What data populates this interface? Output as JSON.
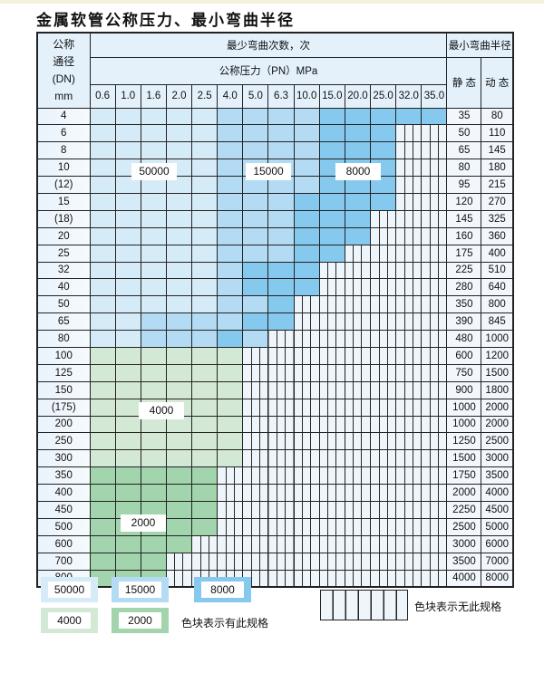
{
  "title": "金属软管公称压力、最小弯曲半径",
  "header": {
    "dn_label": [
      "公称",
      "通径",
      "(DN)",
      "mm"
    ],
    "cycles_label": "最少弯曲次数，次",
    "pressure_label": "公称压力（PN）MPa",
    "radius_label": "最小弯曲半径",
    "static_label": "静 态",
    "dynamic_label": "动 态",
    "pressures": [
      "0.6",
      "1.0",
      "1.6",
      "2.0",
      "2.5",
      "4.0",
      "5.0",
      "6.3",
      "10.0",
      "15.0",
      "20.0",
      "25.0",
      "32.0",
      "35.0"
    ]
  },
  "colors": {
    "L": "#d6ebf8",
    "M": "#b3dbf4",
    "D": "#86c9ee",
    "G1": "#d4e9d5",
    "G2": "#a2d4ae",
    "X": "#eef5fb"
  },
  "categories": {
    "L": "50000",
    "M": "15000",
    "D": "8000",
    "G1": "4000",
    "G2": "2000",
    "X": "none"
  },
  "rows": [
    {
      "dn": "4",
      "cells": "L L L L L M M M M D D D D D",
      "static": "35",
      "dynamic": "80"
    },
    {
      "dn": "6",
      "cells": "L L L L L M M M M D D D X X",
      "static": "50",
      "dynamic": "110"
    },
    {
      "dn": "8",
      "cells": "L L L L L M M M M D D D X X",
      "static": "65",
      "dynamic": "145"
    },
    {
      "dn": "10",
      "cells": "L L L L L M M M M D D D X X",
      "static": "80",
      "dynamic": "180"
    },
    {
      "dn": "(12)",
      "cells": "L L L L L M M M M D D D X X",
      "static": "95",
      "dynamic": "215"
    },
    {
      "dn": "15",
      "cells": "L L L L L M M M D D D D X X",
      "static": "120",
      "dynamic": "270"
    },
    {
      "dn": "(18)",
      "cells": "L L L L L M M M D D D X X X",
      "static": "145",
      "dynamic": "325"
    },
    {
      "dn": "20",
      "cells": "L L L L L M M M D D D X X X",
      "static": "160",
      "dynamic": "360"
    },
    {
      "dn": "25",
      "cells": "L L L L L M M M D D X X X X",
      "static": "175",
      "dynamic": "400"
    },
    {
      "dn": "32",
      "cells": "L L L L L M D D D X X X X X",
      "static": "225",
      "dynamic": "510"
    },
    {
      "dn": "40",
      "cells": "L L L L L M D D D X X X X X",
      "static": "280",
      "dynamic": "640"
    },
    {
      "dn": "50",
      "cells": "L L L L L M M D X X X X X X",
      "static": "350",
      "dynamic": "800"
    },
    {
      "dn": "65",
      "cells": "L L M M M M D D X X X X X X",
      "static": "390",
      "dynamic": "845"
    },
    {
      "dn": "80",
      "cells": "L L M M M D M X X X X X X X",
      "static": "480",
      "dynamic": "1000"
    },
    {
      "dn": "100",
      "cells": "G1 G1 G1 G1 G1 G1 X X X X X X X X",
      "static": "600",
      "dynamic": "1200"
    },
    {
      "dn": "125",
      "cells": "G1 G1 G1 G1 G1 G1 X X X X X X X X",
      "static": "750",
      "dynamic": "1500"
    },
    {
      "dn": "150",
      "cells": "G1 G1 G1 G1 G1 G1 X X X X X X X X",
      "static": "900",
      "dynamic": "1800"
    },
    {
      "dn": "(175)",
      "cells": "G1 G1 G1 G1 G1 G1 X X X X X X X X",
      "static": "1000",
      "dynamic": "2000"
    },
    {
      "dn": "200",
      "cells": "G1 G1 G1 G1 G1 G1 X X X X X X X X",
      "static": "1000",
      "dynamic": "2000"
    },
    {
      "dn": "250",
      "cells": "G1 G1 G1 G1 G1 G1 X X X X X X X X",
      "static": "1250",
      "dynamic": "2500"
    },
    {
      "dn": "300",
      "cells": "G1 G1 G1 G1 G1 G1 X X X X X X X X",
      "static": "1500",
      "dynamic": "3000"
    },
    {
      "dn": "350",
      "cells": "G2 G2 G2 G2 G2 X X X X X X X X X",
      "static": "1750",
      "dynamic": "3500"
    },
    {
      "dn": "400",
      "cells": "G2 G2 G2 G2 G2 X X X X X X X X X",
      "static": "2000",
      "dynamic": "4000"
    },
    {
      "dn": "450",
      "cells": "G2 G2 G2 G2 G2 X X X X X X X X X",
      "static": "2250",
      "dynamic": "4500"
    },
    {
      "dn": "500",
      "cells": "G2 G2 G2 G2 G2 X X X X X X X X X",
      "static": "2500",
      "dynamic": "5000"
    },
    {
      "dn": "600",
      "cells": "G2 G2 G2 G2 X X X X X X X X X X",
      "static": "3000",
      "dynamic": "6000"
    },
    {
      "dn": "700",
      "cells": "G2 G2 G2 X X X X X X X X X X X",
      "static": "3500",
      "dynamic": "7000"
    },
    {
      "dn": "800",
      "cells": "G2 G2 G2 X X X X X X X X X X X",
      "static": "4000",
      "dynamic": "8000"
    }
  ],
  "region_labels": {
    "l": "50000",
    "m": "15000",
    "d": "8000",
    "g1": "4000",
    "g2": "2000"
  },
  "legend": {
    "items": [
      "50000",
      "15000",
      "8000",
      "4000",
      "2000"
    ],
    "available_text": "色块表示有此规格",
    "unavailable_text": "色块表示无此规格"
  }
}
